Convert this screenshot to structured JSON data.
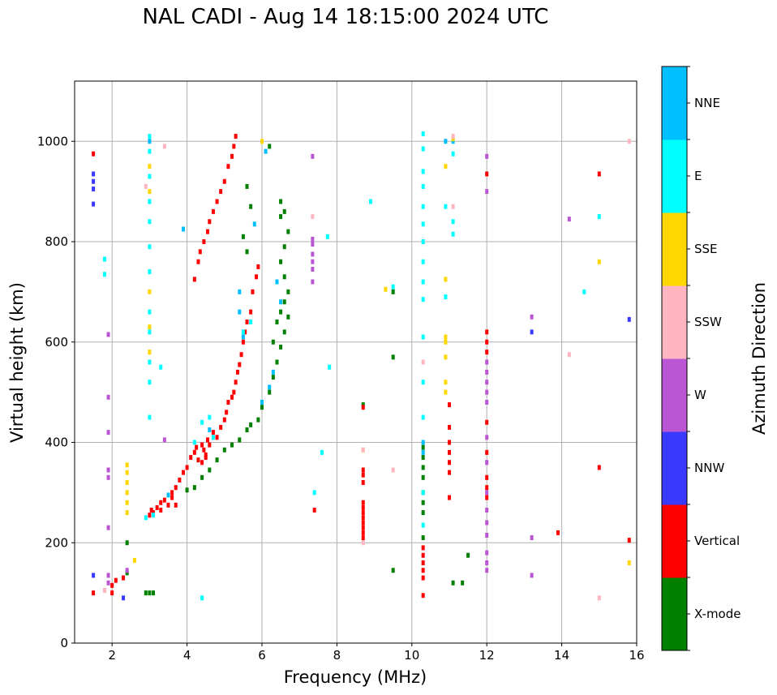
{
  "chart_data": {
    "type": "scatter",
    "title": "NAL CADI - Aug 14 18:15:00 2024 UTC",
    "xlabel": "Frequency (MHz)",
    "ylabel": "Virtual height (km)",
    "xlim": [
      1,
      16
    ],
    "ylim": [
      0,
      1120
    ],
    "xticks": [
      2,
      4,
      6,
      8,
      10,
      12,
      14,
      16
    ],
    "yticks": [
      0,
      200,
      400,
      600,
      800,
      1000
    ],
    "grid": true,
    "colorbar": {
      "label": "Azimuth Direction",
      "categories": [
        "X-mode",
        "Vertical",
        "NNW",
        "W",
        "SSW",
        "SSE",
        "E",
        "NNE"
      ],
      "colors": [
        "#008000",
        "#ff0000",
        "#3a3aff",
        "#ba55d3",
        "#ffb6c1",
        "#ffd700",
        "#00ffff",
        "#00bfff"
      ]
    },
    "point_format": [
      "frequency_MHz",
      "height_km",
      "category_index"
    ],
    "points": [
      [
        3.0,
        255,
        1
      ],
      [
        3.05,
        265,
        1
      ],
      [
        3.1,
        260,
        1
      ],
      [
        3.2,
        270,
        1
      ],
      [
        3.3,
        280,
        1
      ],
      [
        3.4,
        285,
        1
      ],
      [
        3.5,
        275,
        1
      ],
      [
        3.6,
        300,
        1
      ],
      [
        3.7,
        310,
        1
      ],
      [
        3.8,
        325,
        1
      ],
      [
        3.9,
        340,
        1
      ],
      [
        4.0,
        350,
        1
      ],
      [
        4.1,
        370,
        1
      ],
      [
        4.2,
        380,
        1
      ],
      [
        4.25,
        390,
        1
      ],
      [
        4.3,
        365,
        1
      ],
      [
        4.4,
        395,
        1
      ],
      [
        4.5,
        375,
        1
      ],
      [
        4.55,
        405,
        1
      ],
      [
        4.6,
        395,
        1
      ],
      [
        4.7,
        420,
        1
      ],
      [
        4.8,
        410,
        1
      ],
      [
        4.9,
        430,
        1
      ],
      [
        5.0,
        445,
        1
      ],
      [
        5.05,
        460,
        1
      ],
      [
        5.1,
        480,
        1
      ],
      [
        5.2,
        490,
        1
      ],
      [
        5.25,
        500,
        1
      ],
      [
        5.3,
        520,
        1
      ],
      [
        5.35,
        540,
        1
      ],
      [
        5.4,
        555,
        1
      ],
      [
        5.45,
        575,
        1
      ],
      [
        5.5,
        600,
        1
      ],
      [
        5.55,
        620,
        1
      ],
      [
        5.6,
        640,
        1
      ],
      [
        5.7,
        660,
        1
      ],
      [
        5.75,
        700,
        1
      ],
      [
        5.85,
        730,
        1
      ],
      [
        5.9,
        750,
        1
      ],
      [
        4.3,
        760,
        1
      ],
      [
        4.35,
        780,
        1
      ],
      [
        4.45,
        800,
        1
      ],
      [
        4.55,
        820,
        1
      ],
      [
        4.6,
        840,
        1
      ],
      [
        4.7,
        860,
        1
      ],
      [
        4.8,
        880,
        1
      ],
      [
        4.9,
        900,
        1
      ],
      [
        5.0,
        920,
        1
      ],
      [
        5.1,
        950,
        1
      ],
      [
        5.2,
        970,
        1
      ],
      [
        5.25,
        990,
        1
      ],
      [
        5.3,
        1010,
        1
      ],
      [
        4.2,
        725,
        1
      ],
      [
        1.5,
        100,
        1
      ],
      [
        1.8,
        105,
        1
      ],
      [
        2.0,
        115,
        1
      ],
      [
        2.1,
        125,
        1
      ],
      [
        2.3,
        130,
        1
      ],
      [
        2.0,
        100,
        1
      ],
      [
        3.3,
        265,
        1
      ],
      [
        3.6,
        290,
        1
      ],
      [
        4.4,
        360,
        1
      ],
      [
        4.5,
        370,
        1
      ],
      [
        4.45,
        385,
        1
      ],
      [
        2.9,
        100,
        0
      ],
      [
        3.0,
        100,
        0
      ],
      [
        3.1,
        100,
        0
      ],
      [
        4.0,
        305,
        0
      ],
      [
        4.2,
        310,
        0
      ],
      [
        4.4,
        330,
        0
      ],
      [
        4.6,
        345,
        0
      ],
      [
        4.8,
        365,
        0
      ],
      [
        5.0,
        385,
        0
      ],
      [
        5.2,
        395,
        0
      ],
      [
        5.4,
        405,
        0
      ],
      [
        5.6,
        425,
        0
      ],
      [
        5.7,
        435,
        0
      ],
      [
        5.9,
        445,
        0
      ],
      [
        6.0,
        470,
        0
      ],
      [
        6.2,
        500,
        0
      ],
      [
        6.3,
        530,
        0
      ],
      [
        6.4,
        560,
        0
      ],
      [
        6.5,
        590,
        0
      ],
      [
        6.6,
        620,
        0
      ],
      [
        6.7,
        650,
        0
      ],
      [
        6.6,
        680,
        0
      ],
      [
        6.7,
        700,
        0
      ],
      [
        6.6,
        730,
        0
      ],
      [
        6.5,
        760,
        0
      ],
      [
        6.6,
        790,
        0
      ],
      [
        6.7,
        820,
        0
      ],
      [
        6.5,
        850,
        0
      ],
      [
        6.5,
        880,
        0
      ],
      [
        6.6,
        860,
        0
      ],
      [
        6.2,
        990,
        0
      ],
      [
        5.6,
        910,
        0
      ],
      [
        5.7,
        870,
        0
      ],
      [
        5.5,
        810,
        0
      ],
      [
        5.6,
        780,
        0
      ],
      [
        2.4,
        140,
        0
      ],
      [
        2.4,
        200,
        0
      ],
      [
        10.3,
        260,
        0
      ],
      [
        10.3,
        280,
        0
      ],
      [
        10.3,
        300,
        0
      ],
      [
        10.3,
        330,
        0
      ],
      [
        10.3,
        350,
        0
      ],
      [
        10.3,
        370,
        0
      ],
      [
        10.3,
        390,
        0
      ],
      [
        10.3,
        210,
        0
      ],
      [
        9.5,
        145,
        0
      ],
      [
        9.5,
        570,
        0
      ],
      [
        9.5,
        700,
        0
      ],
      [
        11.5,
        175,
        0
      ],
      [
        11.1,
        120,
        0
      ],
      [
        11.35,
        120,
        0
      ],
      [
        8.7,
        475,
        0
      ],
      [
        6.3,
        600,
        0
      ],
      [
        6.4,
        640,
        0
      ],
      [
        6.5,
        660,
        0
      ],
      [
        3.0,
        450,
        6
      ],
      [
        3.0,
        520,
        6
      ],
      [
        3.0,
        560,
        6
      ],
      [
        3.0,
        620,
        6
      ],
      [
        3.0,
        660,
        6
      ],
      [
        3.0,
        740,
        6
      ],
      [
        3.0,
        790,
        6
      ],
      [
        3.0,
        840,
        6
      ],
      [
        3.0,
        880,
        6
      ],
      [
        3.0,
        930,
        6
      ],
      [
        3.0,
        980,
        6
      ],
      [
        3.0,
        1010,
        6
      ],
      [
        2.9,
        250,
        6
      ],
      [
        3.1,
        255,
        6
      ],
      [
        4.4,
        440,
        6
      ],
      [
        4.6,
        450,
        6
      ],
      [
        4.2,
        400,
        6
      ],
      [
        5.5,
        620,
        6
      ],
      [
        5.7,
        640,
        6
      ],
      [
        4.7,
        410,
        6
      ],
      [
        10.3,
        450,
        6
      ],
      [
        10.3,
        520,
        6
      ],
      [
        10.3,
        610,
        6
      ],
      [
        10.3,
        685,
        6
      ],
      [
        10.3,
        720,
        6
      ],
      [
        10.3,
        760,
        6
      ],
      [
        10.3,
        800,
        6
      ],
      [
        10.3,
        835,
        6
      ],
      [
        10.3,
        870,
        6
      ],
      [
        10.3,
        910,
        6
      ],
      [
        10.3,
        940,
        6
      ],
      [
        10.3,
        985,
        6
      ],
      [
        10.3,
        1015,
        6
      ],
      [
        10.3,
        300,
        6
      ],
      [
        10.3,
        235,
        6
      ],
      [
        10.9,
        690,
        6
      ],
      [
        10.9,
        870,
        6
      ],
      [
        11.1,
        840,
        6
      ],
      [
        11.1,
        815,
        6
      ],
      [
        11.1,
        975,
        6
      ],
      [
        8.9,
        880,
        6
      ],
      [
        9.5,
        710,
        6
      ],
      [
        14.6,
        700,
        6
      ],
      [
        15.0,
        850,
        6
      ],
      [
        4.4,
        90,
        6
      ],
      [
        1.8,
        765,
        6
      ],
      [
        1.8,
        735,
        6
      ],
      [
        7.8,
        550,
        6
      ],
      [
        7.6,
        380,
        6
      ],
      [
        7.4,
        300,
        6
      ],
      [
        7.75,
        810,
        6
      ],
      [
        3.3,
        550,
        6
      ],
      [
        5.5,
        610,
        7
      ],
      [
        5.4,
        660,
        7
      ],
      [
        6.0,
        480,
        7
      ],
      [
        6.2,
        510,
        7
      ],
      [
        6.3,
        540,
        7
      ],
      [
        6.4,
        720,
        7
      ],
      [
        6.5,
        680,
        7
      ],
      [
        6.1,
        980,
        7
      ],
      [
        5.8,
        835,
        7
      ],
      [
        5.4,
        700,
        7
      ],
      [
        4.6,
        425,
        7
      ],
      [
        3.0,
        1000,
        7
      ],
      [
        10.3,
        400,
        7
      ],
      [
        10.3,
        380,
        7
      ],
      [
        11.1,
        1000,
        7
      ],
      [
        10.9,
        1000,
        7
      ],
      [
        3.9,
        825,
        7
      ],
      [
        3.5,
        295,
        7
      ],
      [
        10.9,
        500,
        5
      ],
      [
        10.9,
        520,
        5
      ],
      [
        10.9,
        570,
        5
      ],
      [
        10.9,
        600,
        5
      ],
      [
        10.9,
        610,
        5
      ],
      [
        10.9,
        725,
        5
      ],
      [
        10.9,
        950,
        5
      ],
      [
        11.1,
        1005,
        5
      ],
      [
        2.4,
        260,
        5
      ],
      [
        2.4,
        280,
        5
      ],
      [
        2.4,
        300,
        5
      ],
      [
        2.4,
        320,
        5
      ],
      [
        2.4,
        340,
        5
      ],
      [
        2.4,
        355,
        5
      ],
      [
        3.0,
        580,
        5
      ],
      [
        3.0,
        630,
        5
      ],
      [
        3.0,
        700,
        5
      ],
      [
        3.0,
        900,
        5
      ],
      [
        3.0,
        950,
        5
      ],
      [
        8.7,
        385,
        5
      ],
      [
        9.3,
        705,
        5
      ],
      [
        15.0,
        760,
        5
      ],
      [
        15.8,
        160,
        5
      ],
      [
        6.0,
        1000,
        5
      ],
      [
        2.6,
        165,
        5
      ],
      [
        8.7,
        200,
        4
      ],
      [
        8.7,
        385,
        4
      ],
      [
        9.5,
        345,
        4
      ],
      [
        10.3,
        560,
        4
      ],
      [
        11.1,
        870,
        4
      ],
      [
        14.2,
        575,
        4
      ],
      [
        15.0,
        90,
        4
      ],
      [
        15.8,
        1000,
        4
      ],
      [
        7.35,
        850,
        4
      ],
      [
        2.9,
        910,
        4
      ],
      [
        3.4,
        990,
        4
      ],
      [
        1.8,
        105,
        4
      ],
      [
        11.1,
        1010,
        4
      ],
      [
        1.9,
        120,
        3
      ],
      [
        1.9,
        135,
        3
      ],
      [
        1.9,
        230,
        3
      ],
      [
        1.9,
        330,
        3
      ],
      [
        1.9,
        345,
        3
      ],
      [
        1.9,
        420,
        3
      ],
      [
        1.9,
        490,
        3
      ],
      [
        1.9,
        615,
        3
      ],
      [
        12.0,
        145,
        3
      ],
      [
        12.0,
        160,
        3
      ],
      [
        12.0,
        180,
        3
      ],
      [
        12.0,
        215,
        3
      ],
      [
        12.0,
        240,
        3
      ],
      [
        12.0,
        265,
        3
      ],
      [
        12.0,
        300,
        3
      ],
      [
        12.0,
        360,
        3
      ],
      [
        12.0,
        410,
        3
      ],
      [
        12.0,
        480,
        3
      ],
      [
        12.0,
        500,
        3
      ],
      [
        12.0,
        520,
        3
      ],
      [
        12.0,
        540,
        3
      ],
      [
        12.0,
        560,
        3
      ],
      [
        12.0,
        970,
        3
      ],
      [
        7.35,
        720,
        3
      ],
      [
        7.35,
        745,
        3
      ],
      [
        7.35,
        760,
        3
      ],
      [
        7.35,
        775,
        3
      ],
      [
        7.35,
        795,
        3
      ],
      [
        7.35,
        805,
        3
      ],
      [
        7.35,
        970,
        3
      ],
      [
        13.2,
        135,
        3
      ],
      [
        13.2,
        210,
        3
      ],
      [
        13.2,
        650,
        3
      ],
      [
        14.2,
        845,
        3
      ],
      [
        12.0,
        900,
        3
      ],
      [
        2.4,
        145,
        3
      ],
      [
        3.4,
        405,
        3
      ],
      [
        1.5,
        920,
        2
      ],
      [
        1.5,
        935,
        2
      ],
      [
        1.5,
        905,
        2
      ],
      [
        1.5,
        875,
        2
      ],
      [
        1.5,
        135,
        2
      ],
      [
        2.3,
        90,
        2
      ],
      [
        13.2,
        620,
        2
      ],
      [
        15.8,
        645,
        2
      ],
      [
        15.0,
        935,
        1
      ],
      [
        15.0,
        350,
        1
      ],
      [
        13.9,
        220,
        1
      ],
      [
        15.8,
        205,
        1
      ],
      [
        12.0,
        935,
        1
      ],
      [
        12.0,
        620,
        1
      ],
      [
        12.0,
        600,
        1
      ],
      [
        12.0,
        580,
        1
      ],
      [
        12.0,
        440,
        1
      ],
      [
        12.0,
        380,
        1
      ],
      [
        12.0,
        330,
        1
      ],
      [
        12.0,
        310,
        1
      ],
      [
        12.0,
        290,
        1
      ],
      [
        11.0,
        290,
        1
      ],
      [
        11.0,
        340,
        1
      ],
      [
        11.0,
        360,
        1
      ],
      [
        11.0,
        380,
        1
      ],
      [
        11.0,
        400,
        1
      ],
      [
        11.0,
        430,
        1
      ],
      [
        11.0,
        475,
        1
      ],
      [
        10.3,
        95,
        1
      ],
      [
        10.3,
        130,
        1
      ],
      [
        10.3,
        145,
        1
      ],
      [
        10.3,
        160,
        1
      ],
      [
        10.3,
        175,
        1
      ],
      [
        10.3,
        190,
        1
      ],
      [
        8.7,
        210,
        1
      ],
      [
        8.7,
        220,
        1
      ],
      [
        8.7,
        230,
        1
      ],
      [
        8.7,
        240,
        1
      ],
      [
        8.7,
        250,
        1
      ],
      [
        8.7,
        260,
        1
      ],
      [
        8.7,
        270,
        1
      ],
      [
        8.7,
        280,
        1
      ],
      [
        8.7,
        320,
        1
      ],
      [
        8.7,
        335,
        1
      ],
      [
        8.7,
        345,
        1
      ],
      [
        8.7,
        470,
        1
      ],
      [
        7.4,
        265,
        1
      ],
      [
        1.5,
        975,
        1
      ],
      [
        3.7,
        275,
        1
      ]
    ]
  }
}
